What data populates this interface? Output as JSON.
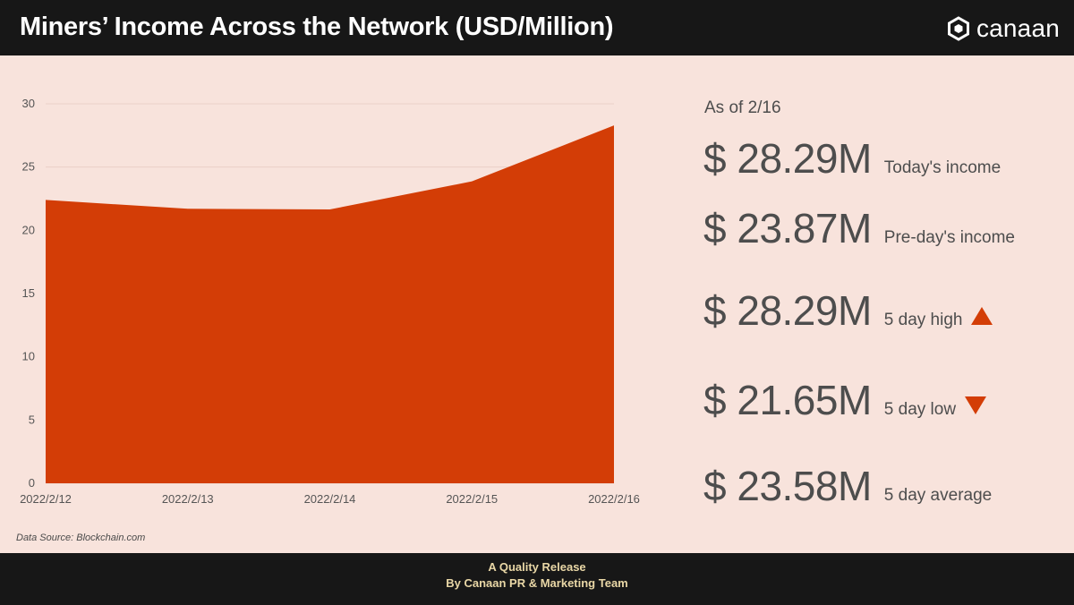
{
  "header": {
    "title": "Miners’ Income Across the Network (USD/Million)",
    "logo_text": "canaan",
    "logo_icon": "canaan-hexagon-logo"
  },
  "colors": {
    "background": "#f8e3dc",
    "header_bg": "#171717",
    "area_fill": "#d33d06",
    "footer_text": "#e9d7a6"
  },
  "chart_data": {
    "type": "area",
    "title": "Miners’ Income Across the Network (USD/Million)",
    "x": [
      "2022/2/12",
      "2022/2/13",
      "2022/2/14",
      "2022/2/15",
      "2022/2/16"
    ],
    "values": [
      22.4,
      21.7,
      21.65,
      23.87,
      28.29
    ],
    "ylim": [
      0,
      30
    ],
    "yticks": [
      0,
      5,
      10,
      15,
      20,
      25,
      30
    ],
    "grid": true,
    "legend": "none",
    "xlabel": "",
    "ylabel": ""
  },
  "source": "Data Source: Blockchain.com",
  "summary": {
    "as_of": "As of 2/16",
    "stats": [
      {
        "value": "$ 28.29M",
        "label": "Today's income",
        "marker": ""
      },
      {
        "value": "$ 23.87M",
        "label": "Pre-day's income",
        "marker": ""
      },
      {
        "value": "$ 28.29M",
        "label": "5 day high",
        "marker": "up"
      },
      {
        "value": "$ 21.65M",
        "label": "5 day low",
        "marker": "down"
      },
      {
        "value": "$ 23.58M",
        "label": "5 day average",
        "marker": ""
      }
    ]
  },
  "footer": {
    "line1": "A Quality Release",
    "line2": "By Canaan PR & Marketing Team"
  }
}
